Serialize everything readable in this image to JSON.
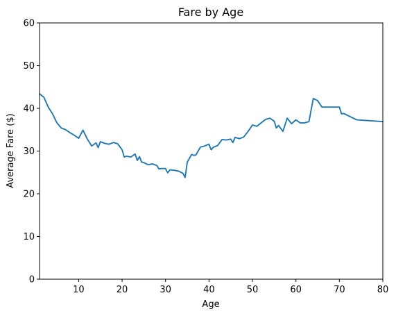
{
  "chart_data": {
    "type": "line",
    "title": "Fare by Age",
    "xlabel": "Age",
    "ylabel": "Average Fare ($)",
    "xlim": [
      1,
      80
    ],
    "ylim": [
      0,
      60
    ],
    "xticks": [
      10,
      20,
      30,
      40,
      50,
      60,
      70,
      80
    ],
    "yticks": [
      0,
      10,
      20,
      30,
      40,
      50,
      60
    ],
    "grid": false,
    "legend": "none",
    "colors": {
      "line": "#1f77b4",
      "axes": "#000000",
      "background": "#ffffff"
    },
    "series": [
      {
        "x": [
          1,
          2,
          3,
          4,
          5,
          6,
          7,
          8,
          9,
          10,
          11,
          12,
          13,
          14,
          14.5,
          15,
          16,
          17,
          18,
          19,
          20,
          20.5,
          21,
          22,
          23,
          23.5,
          24,
          24.5,
          25,
          26,
          27,
          28,
          28.5,
          29,
          30,
          30.5,
          31,
          32,
          33,
          34,
          34.5,
          35,
          36,
          36.5,
          37,
          38,
          39,
          40,
          40.5,
          41,
          42,
          43,
          44,
          45,
          45.5,
          46,
          47,
          48,
          49,
          50,
          51,
          52,
          53,
          54,
          55,
          55.5,
          56,
          57,
          58,
          59,
          60,
          61,
          62,
          63,
          64,
          65,
          66,
          70,
          70.5,
          71,
          74,
          80
        ],
        "y": [
          43.4,
          42.6,
          40.3,
          38.7,
          36.6,
          35.4,
          35.0,
          34.3,
          33.7,
          33.0,
          34.9,
          32.8,
          31.2,
          31.9,
          30.8,
          32.2,
          31.8,
          31.6,
          32.0,
          31.7,
          30.3,
          28.6,
          28.8,
          28.6,
          29.3,
          27.8,
          28.7,
          27.4,
          27.3,
          26.8,
          27.0,
          26.6,
          25.8,
          25.9,
          25.9,
          24.9,
          25.6,
          25.5,
          25.3,
          24.8,
          23.8,
          27.4,
          29.2,
          29.0,
          29.1,
          30.9,
          31.2,
          31.6,
          30.3,
          30.9,
          31.3,
          32.7,
          32.6,
          32.8,
          32.0,
          33.2,
          32.9,
          33.3,
          34.6,
          36.1,
          35.8,
          36.6,
          37.4,
          37.7,
          37.0,
          35.4,
          36.0,
          34.6,
          37.7,
          36.4,
          37.3,
          36.6,
          36.6,
          36.9,
          42.3,
          41.8,
          40.3,
          40.3,
          38.7,
          38.8,
          37.3,
          36.9
        ]
      }
    ]
  }
}
